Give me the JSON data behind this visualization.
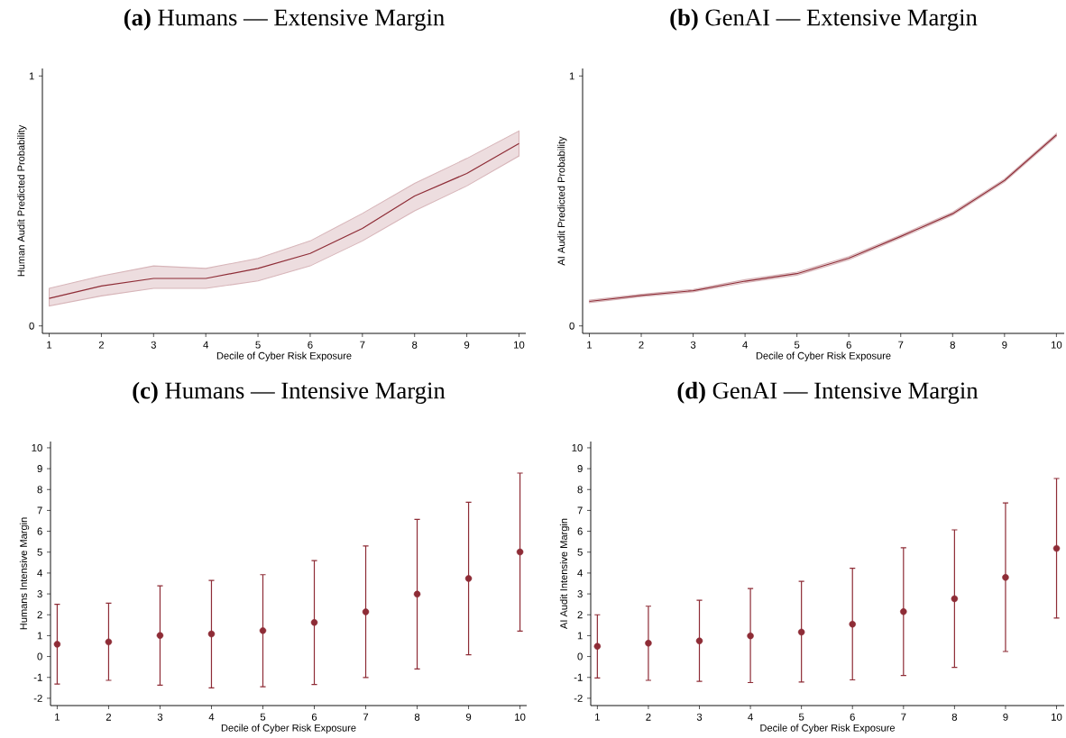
{
  "chart_data": [
    {
      "type": "line",
      "title": "**(a)** Humans — Extensive Margin",
      "xlabel": "Decile of Cyber Risk Exposure",
      "ylabel": "Human Audit Predicted Probability",
      "x": [
        1,
        2,
        3,
        4,
        5,
        6,
        7,
        8,
        9,
        10
      ],
      "xlim": [
        0.87,
        10.13
      ],
      "xticks": [
        1,
        2,
        3,
        4,
        5,
        6,
        7,
        8,
        9,
        10
      ],
      "ylim": [
        -0.03,
        1.03
      ],
      "yticks": [
        0,
        1
      ],
      "series": [
        {
          "color": "#8e2c36",
          "values": [
            0.11,
            0.16,
            0.19,
            0.19,
            0.23,
            0.29,
            0.39,
            0.52,
            0.61,
            0.73
          ],
          "lower": [
            0.08,
            0.12,
            0.15,
            0.15,
            0.18,
            0.24,
            0.34,
            0.46,
            0.56,
            0.68
          ],
          "upper": [
            0.15,
            0.2,
            0.24,
            0.23,
            0.27,
            0.34,
            0.45,
            0.57,
            0.67,
            0.78
          ]
        }
      ]
    },
    {
      "type": "line",
      "title": "**(b)** GenAI — Extensive Margin",
      "xlabel": "Decile of Cyber Risk Exposure",
      "ylabel": "AI Audit Predicted Probability",
      "x": [
        1,
        2,
        3,
        4,
        5,
        6,
        7,
        8,
        9,
        10
      ],
      "xlim": [
        0.87,
        10.15
      ],
      "xticks": [
        1,
        2,
        3,
        4,
        5,
        6,
        7,
        8,
        9,
        10
      ],
      "ylim": [
        -0.03,
        1.03
      ],
      "yticks": [
        0,
        1
      ],
      "series": [
        {
          "color": "#8e2c36",
          "values": [
            0.098,
            0.122,
            0.141,
            0.179,
            0.209,
            0.271,
            0.358,
            0.449,
            0.582,
            0.764
          ],
          "lower": [
            0.093,
            0.117,
            0.136,
            0.173,
            0.203,
            0.265,
            0.352,
            0.443,
            0.576,
            0.758
          ],
          "upper": [
            0.103,
            0.127,
            0.146,
            0.185,
            0.215,
            0.277,
            0.364,
            0.455,
            0.588,
            0.77
          ]
        }
      ]
    },
    {
      "type": "scatter",
      "title": "**(c)** Humans — Intensive Margin",
      "xlabel": "Decile of Cyber Risk Exposure",
      "ylabel": "Humans Intensive Margin",
      "x": [
        1,
        2,
        3,
        4,
        5,
        6,
        7,
        8,
        9,
        10
      ],
      "xlim": [
        0.87,
        10.13
      ],
      "xticks": [
        1,
        2,
        3,
        4,
        5,
        6,
        7,
        8,
        9,
        10
      ],
      "ylim": [
        -2.35,
        10.3
      ],
      "yticks": [
        -2,
        -1,
        0,
        1,
        2,
        3,
        4,
        5,
        6,
        7,
        8,
        9,
        10
      ],
      "marker": "circle",
      "color": "#8e2c36",
      "values": [
        0.59,
        0.7,
        1.01,
        1.08,
        1.24,
        1.63,
        2.14,
        2.99,
        3.74,
        5.01
      ],
      "errors": [
        [
          -1.32,
          2.5
        ],
        [
          -1.14,
          2.56
        ],
        [
          -1.37,
          3.39
        ],
        [
          -1.5,
          3.65
        ],
        [
          -1.45,
          3.92
        ],
        [
          -1.34,
          4.6
        ],
        [
          -1.01,
          5.3
        ],
        [
          -0.6,
          6.57
        ],
        [
          0.08,
          7.39
        ],
        [
          1.22,
          8.79
        ]
      ]
    },
    {
      "type": "scatter",
      "title": "**(d)** GenAI — Intensive Margin",
      "xlabel": "Decile of Cyber Risk Exposure",
      "ylabel": "AI Audit Intensive Margin",
      "x": [
        1,
        2,
        3,
        4,
        5,
        6,
        7,
        8,
        9,
        10
      ],
      "xlim": [
        0.87,
        10.15
      ],
      "xticks": [
        1,
        2,
        3,
        4,
        5,
        6,
        7,
        8,
        9,
        10
      ],
      "ylim": [
        -2.35,
        10.3
      ],
      "yticks": [
        -2,
        -1,
        0,
        1,
        2,
        3,
        4,
        5,
        6,
        7,
        8,
        9,
        10
      ],
      "marker": "circle",
      "color": "#8e2c36",
      "values": [
        0.49,
        0.64,
        0.75,
        0.99,
        1.17,
        1.55,
        2.15,
        2.77,
        3.79,
        5.18
      ],
      "errors": [
        [
          -1.03,
          2.0
        ],
        [
          -1.14,
          2.41
        ],
        [
          -1.19,
          2.7
        ],
        [
          -1.25,
          3.26
        ],
        [
          -1.22,
          3.6
        ],
        [
          -1.12,
          4.23
        ],
        [
          -0.91,
          5.21
        ],
        [
          -0.52,
          6.07
        ],
        [
          0.24,
          7.36
        ],
        [
          1.84,
          8.53
        ]
      ]
    }
  ]
}
